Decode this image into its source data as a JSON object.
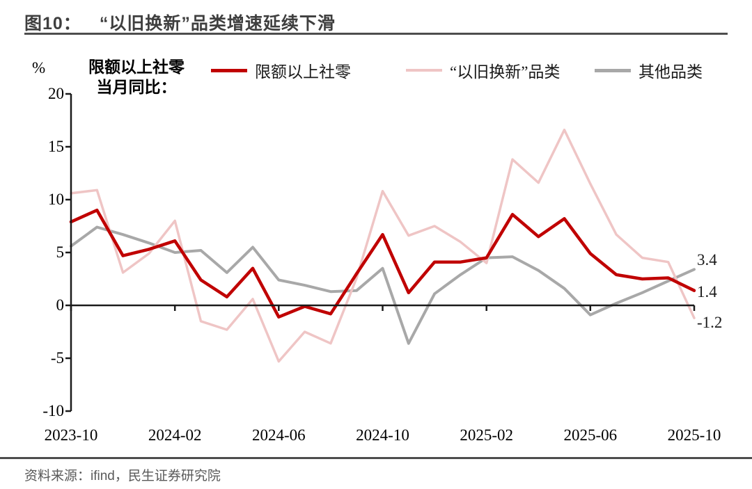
{
  "title": {
    "prefix": "图10：",
    "main": "“以旧换新”品类增速延续下滑"
  },
  "axis_header": {
    "unit": "%",
    "line1": "限额以上社零",
    "line2": "当月同比："
  },
  "legend": [
    {
      "label": "限额以上社零",
      "color": "#c00000"
    },
    {
      "label": "“以旧换新”品类",
      "color": "#efc5c5"
    },
    {
      "label": "其他品类",
      "color": "#a8a8a8"
    }
  ],
  "chart_data": {
    "type": "line",
    "title": "“以旧换新”品类增速延续下滑",
    "ylabel": "% 限额以上社零当月同比",
    "ylim": [
      -10,
      20
    ],
    "y_ticks": [
      20,
      15,
      10,
      5,
      0,
      -5,
      -10
    ],
    "x_tick_labels": [
      "2023-10",
      "2024-02",
      "2024-06",
      "2024-10",
      "2025-02",
      "2025-06",
      "2025-10"
    ],
    "x_tick_indices": [
      0,
      4,
      8,
      12,
      16,
      20,
      24
    ],
    "months": [
      "2023-10",
      "2023-11",
      "2023-12",
      "2024-01",
      "2024-02",
      "2024-03",
      "2024-04",
      "2024-05",
      "2024-06",
      "2024-07",
      "2024-08",
      "2024-09",
      "2024-10",
      "2024-11",
      "2024-12",
      "2025-01",
      "2025-02",
      "2025-03",
      "2025-04",
      "2025-05",
      "2025-06",
      "2025-07",
      "2025-08",
      "2025-09",
      "2025-10"
    ],
    "series": [
      {
        "id": "main",
        "name": "限额以上社零",
        "color": "#c00000",
        "end_label": "1.4",
        "values": [
          7.9,
          9.0,
          4.7,
          5.3,
          6.1,
          2.4,
          0.8,
          3.5,
          -1.1,
          -0.1,
          -0.8,
          3.0,
          6.7,
          1.2,
          4.1,
          4.1,
          4.5,
          8.6,
          6.5,
          8.2,
          4.9,
          2.9,
          2.5,
          2.6,
          1.4
        ]
      },
      {
        "id": "tradein",
        "name": "“以旧换新”品类",
        "color": "#efc5c5",
        "end_label": "-1.2",
        "values": [
          10.6,
          10.9,
          3.1,
          4.9,
          8.0,
          -1.5,
          -2.3,
          0.6,
          -5.3,
          -2.5,
          -3.6,
          2.6,
          10.8,
          6.6,
          7.5,
          6.0,
          4.0,
          13.8,
          11.6,
          16.6,
          11.5,
          6.7,
          4.5,
          4.1,
          -1.2
        ]
      },
      {
        "id": "other",
        "name": "其他品类",
        "color": "#a8a8a8",
        "end_label": "3.4",
        "values": [
          5.6,
          7.4,
          6.7,
          5.9,
          5.0,
          5.2,
          3.1,
          5.5,
          2.4,
          1.9,
          1.3,
          1.4,
          3.5,
          -3.6,
          1.1,
          2.9,
          4.5,
          4.6,
          3.3,
          1.6,
          -0.9,
          0.2,
          1.2,
          2.3,
          3.4
        ]
      }
    ],
    "legend_position": "top",
    "grid": false
  },
  "footer": {
    "source": "资料来源：ifind，民生证券研究院"
  }
}
